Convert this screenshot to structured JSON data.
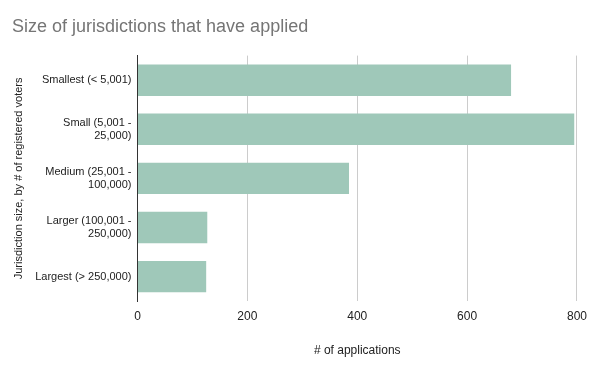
{
  "chart_data": {
    "type": "bar",
    "orientation": "horizontal",
    "title": "Size of jurisdictions that have applied",
    "x_label": "# of applications",
    "y_label": "Jurisdiction size, by # of registered voters",
    "categories": [
      "Smallest (< 5,001)",
      "Small (5,001 - 25,000)",
      "Medium (25,001 - 100,000)",
      "Larger (100,001 - 250,000)",
      "Largest (> 250,000)"
    ],
    "values": [
      680,
      795,
      385,
      127,
      125
    ],
    "color": "#9fc8b9",
    "xlim": [
      0,
      800
    ],
    "xticks": [
      0,
      200,
      400,
      600,
      800
    ],
    "grid": true
  }
}
